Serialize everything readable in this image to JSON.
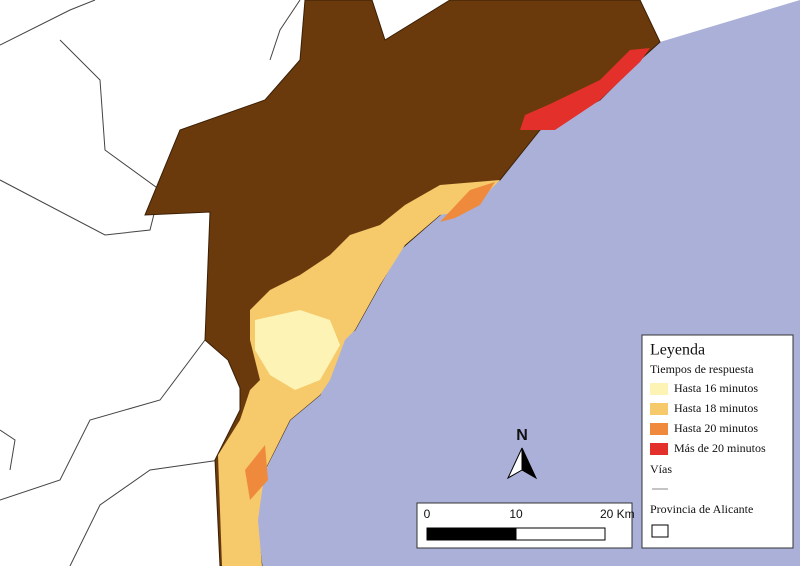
{
  "legend": {
    "title": "Leyenda",
    "subtitle": "Tiempos de respuesta",
    "items": [
      {
        "label": "Hasta 16 minutos",
        "color": "#fdf3b4"
      },
      {
        "label": "Hasta 18 minutos",
        "color": "#f6c96b"
      },
      {
        "label": "Hasta 20 minutos",
        "color": "#ef8a3c"
      },
      {
        "label": "Más de 20 minutos",
        "color": "#e3302a"
      }
    ],
    "roads": "Vías",
    "province": "Provincia de Alicante"
  },
  "scale_bar": {
    "labels": [
      "0",
      "10",
      "20 Km"
    ]
  },
  "north_arrow": "N"
}
